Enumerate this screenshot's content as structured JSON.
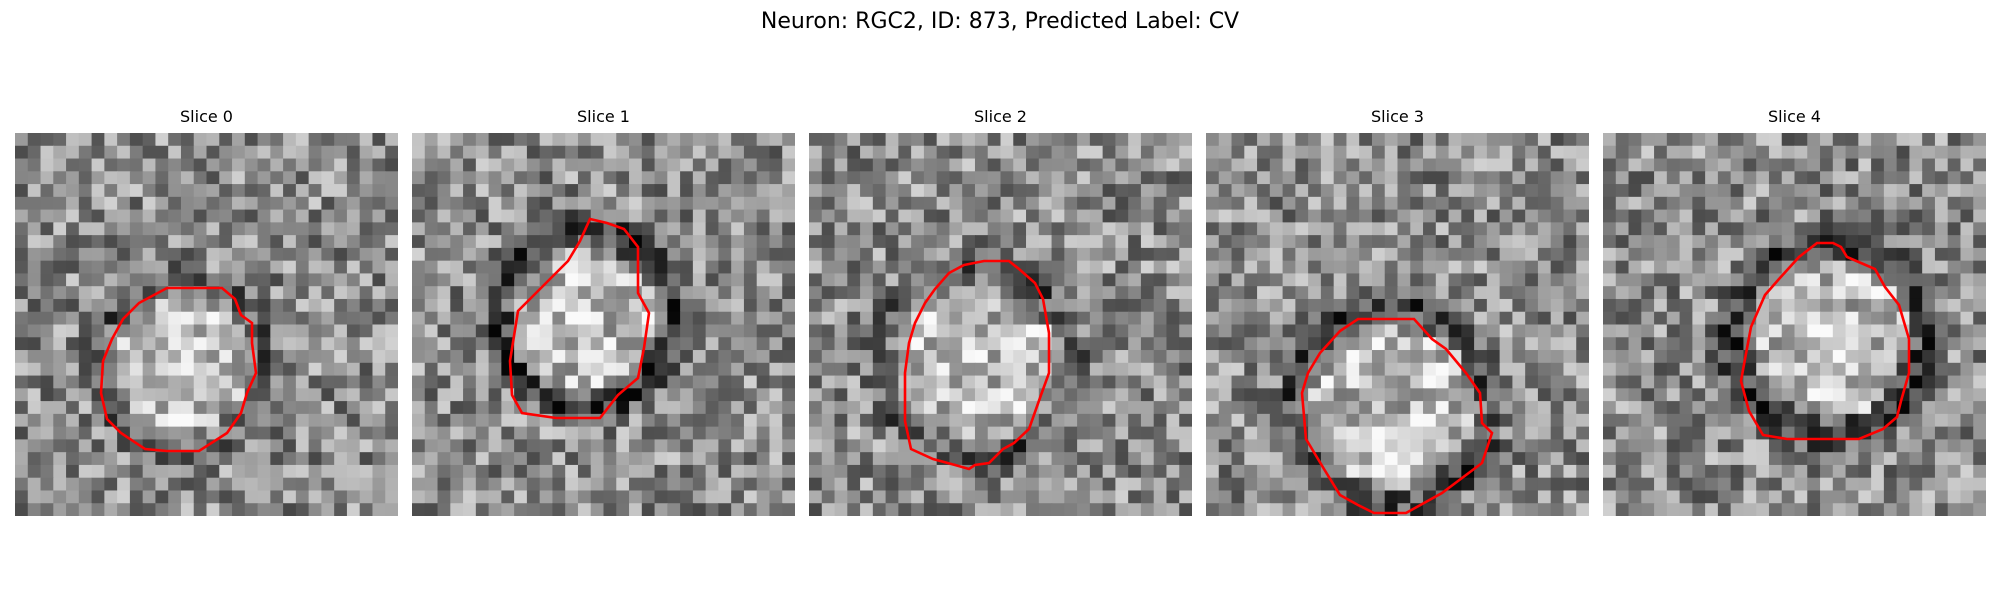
{
  "figure": {
    "title": "Neuron: RGC2, ID: 873, Predicted Label: CV"
  },
  "overlay": {
    "contour_color": "#ff0000",
    "colormap": "gray"
  },
  "slices": [
    {
      "title": "Slice 0",
      "ring_darkness": 0.35,
      "contour_width": 0.49
    },
    {
      "title": "Slice 1",
      "ring_darkness": 0.75,
      "contour_width": 0.51
    },
    {
      "title": "Slice 2",
      "ring_darkness": 0.4,
      "contour_width": 0.52
    },
    {
      "title": "Slice 3",
      "ring_darkness": 0.5,
      "contour_width": 0.52
    },
    {
      "title": "Slice 4",
      "ring_darkness": 0.65,
      "contour_width": 0.55
    }
  ]
}
